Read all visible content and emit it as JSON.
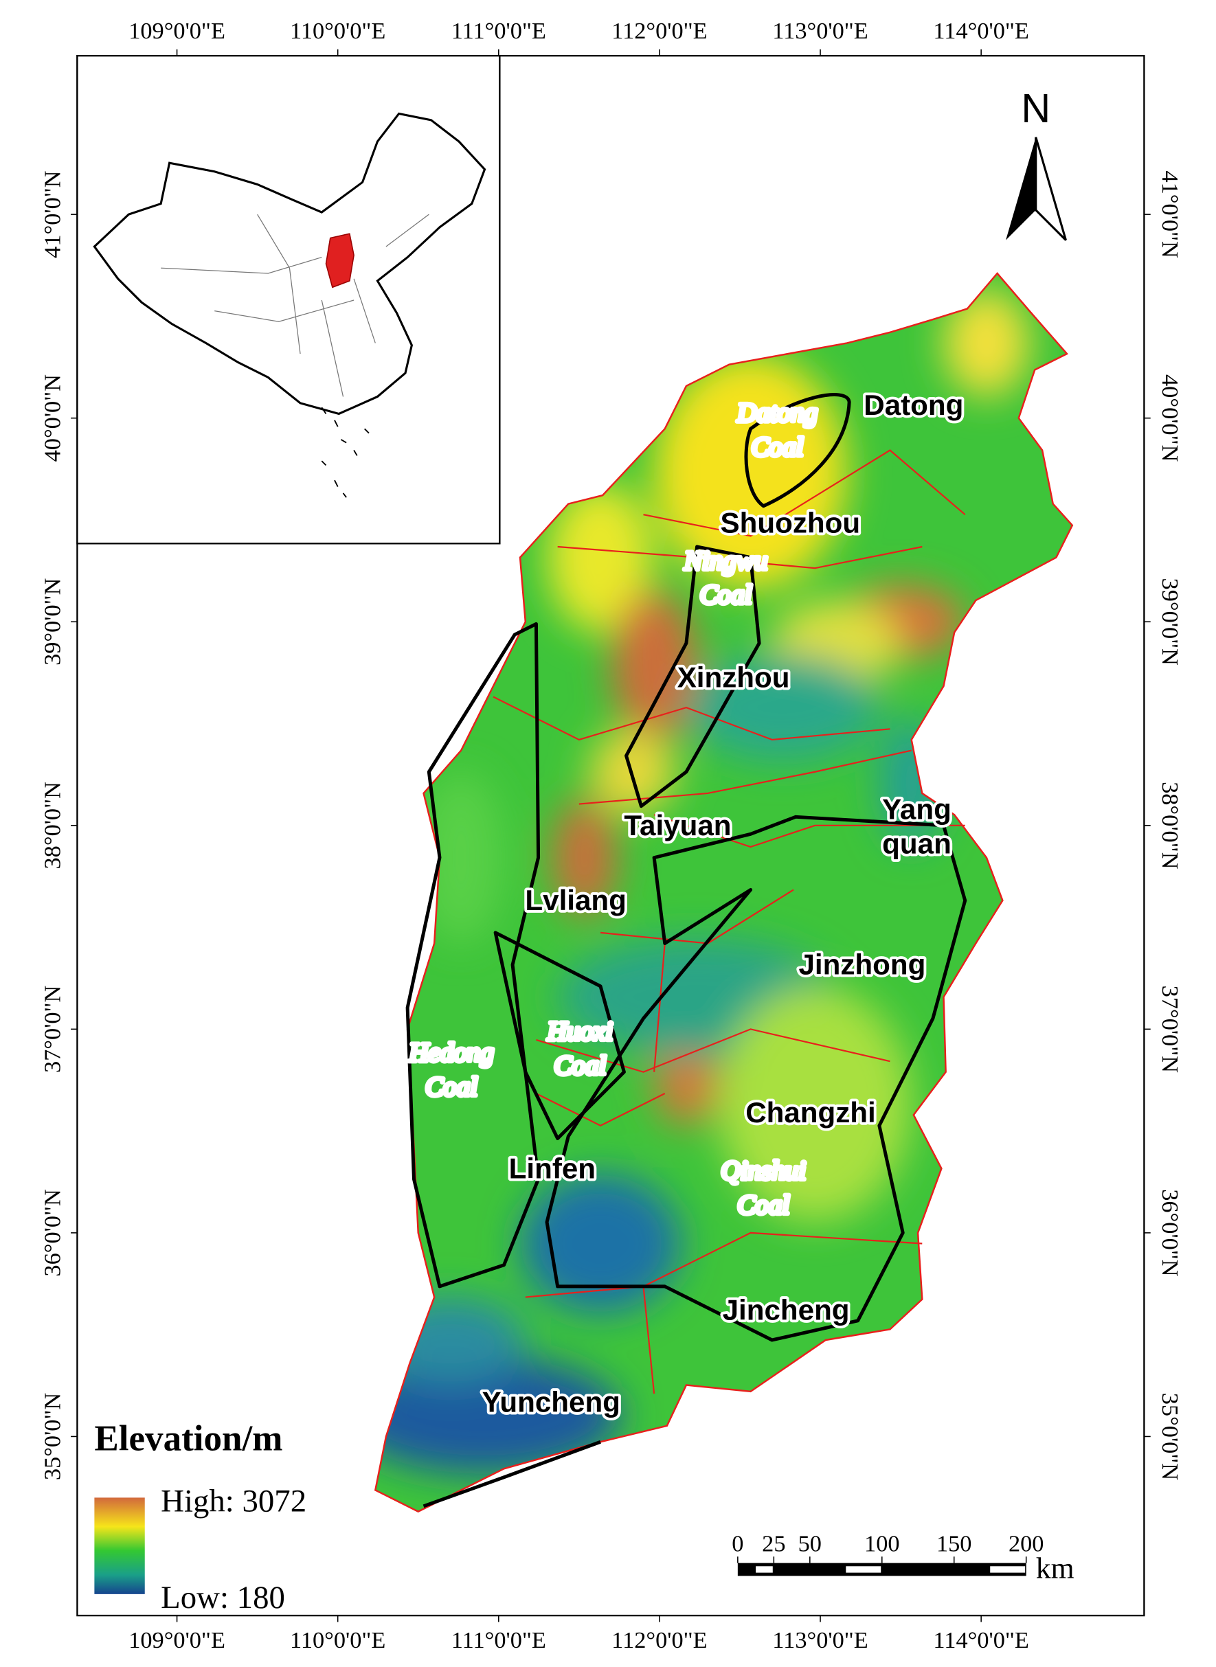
{
  "map": {
    "longitude_ticks": [
      {
        "value": 109,
        "label": "109°0'0\"E"
      },
      {
        "value": 110,
        "label": "110°0'0\"E"
      },
      {
        "value": 111,
        "label": "111°0'0\"E"
      },
      {
        "value": 112,
        "label": "112°0'0\"E"
      },
      {
        "value": 113,
        "label": "113°0'0\"E"
      },
      {
        "value": 114,
        "label": "114°0'0\"E"
      }
    ],
    "latitude_ticks": [
      {
        "value": 41,
        "label": "41°0'0\"N"
      },
      {
        "value": 40,
        "label": "40°0'0\"N"
      },
      {
        "value": 39,
        "label": "39°0'0\"N"
      },
      {
        "value": 38,
        "label": "38°0'0\"N"
      },
      {
        "value": 37,
        "label": "37°0'0\"N"
      },
      {
        "value": 36,
        "label": "36°0'0\"N"
      },
      {
        "value": 35,
        "label": "35°0'0\"N"
      }
    ],
    "north_label": "N",
    "cities": [
      [
        "Datong"
      ],
      [
        "Shuozhou"
      ],
      [
        "Xinzhou"
      ],
      [
        "Taiyuan"
      ],
      [
        "Yang",
        "quan"
      ],
      [
        "Lvliang"
      ],
      [
        "Jinzhong"
      ],
      [
        "Changzhi"
      ],
      [
        "Linfen"
      ],
      [
        "Jincheng"
      ],
      [
        "Yuncheng"
      ]
    ],
    "coal_fields": [
      [
        "Datong",
        "Coal"
      ],
      [
        "Ningwu",
        "Coal"
      ],
      [
        "Huoxi",
        "Coal"
      ],
      [
        "Hedong",
        "Coal"
      ],
      [
        "Qinshui",
        "Coal"
      ]
    ],
    "legend": {
      "title": "Elevation/m",
      "high": "High: 3072",
      "low": "Low: 180"
    },
    "scale_bar": {
      "ticks": [
        0,
        25,
        50,
        100,
        150,
        200
      ],
      "unit": "km"
    }
  }
}
